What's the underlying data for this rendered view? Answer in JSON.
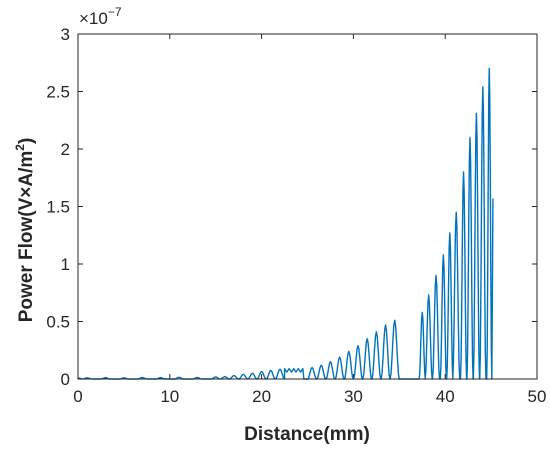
{
  "chart_data": {
    "type": "line",
    "xlabel": "Distance(mm)",
    "ylabel": {
      "main": "Power Flow(V×A/m",
      "superscript": "2",
      "close": ")"
    },
    "y_exponent": {
      "base": "×10",
      "power": "−7"
    },
    "xlim": [
      0,
      50
    ],
    "ylim": [
      0,
      3
    ],
    "x_ticks": [
      0,
      10,
      20,
      30,
      40,
      50
    ],
    "x_tick_labels": [
      "0",
      "10",
      "20",
      "30",
      "40",
      "50"
    ],
    "y_ticks": [
      0,
      0.5,
      1,
      1.5,
      2,
      2.5,
      3
    ],
    "y_tick_labels": [
      "0",
      "0.5",
      "1",
      "1.5",
      "2",
      "2.5",
      "3"
    ],
    "y_units_scale": "1e-7",
    "grid": false,
    "box": true,
    "line_color": "#0072BD",
    "series": [
      {
        "peaks": [
          [
            1,
            0.01
          ],
          [
            3,
            0.012
          ],
          [
            5,
            0.01
          ],
          [
            7,
            0.013
          ],
          [
            9,
            0.012
          ],
          [
            11,
            0.015
          ],
          [
            13,
            0.013
          ],
          [
            15,
            0.018
          ],
          [
            16,
            0.02
          ],
          [
            17,
            0.03
          ],
          [
            18,
            0.04
          ],
          [
            19,
            0.05
          ],
          [
            20,
            0.065
          ],
          [
            21,
            0.075
          ],
          [
            22,
            0.085
          ],
          [
            25.5,
            0.1
          ],
          [
            26.5,
            0.12
          ],
          [
            27.5,
            0.15
          ],
          [
            28.5,
            0.19
          ],
          [
            29.5,
            0.24
          ],
          [
            30.5,
            0.29
          ],
          [
            31.5,
            0.35
          ],
          [
            32.5,
            0.41
          ],
          [
            33.5,
            0.47
          ],
          [
            34.5,
            0.51
          ],
          [
            37.5,
            0.58
          ],
          [
            38.2,
            0.73
          ],
          [
            39.0,
            0.9
          ],
          [
            39.8,
            1.08
          ],
          [
            40.5,
            1.27
          ],
          [
            41.2,
            1.45
          ],
          [
            42.0,
            1.8
          ],
          [
            42.7,
            2.1
          ],
          [
            43.4,
            2.31
          ],
          [
            44.1,
            2.54
          ],
          [
            44.8,
            2.7
          ]
        ],
        "plateaus": [
          {
            "x_range": [
              22.5,
              24.5
            ],
            "y": 0.09
          },
          {
            "x_range": [
              34.0,
              36.6
            ],
            "y": 0.52
          }
        ],
        "end_x": 45.2,
        "end_y": 1.57
      }
    ]
  }
}
